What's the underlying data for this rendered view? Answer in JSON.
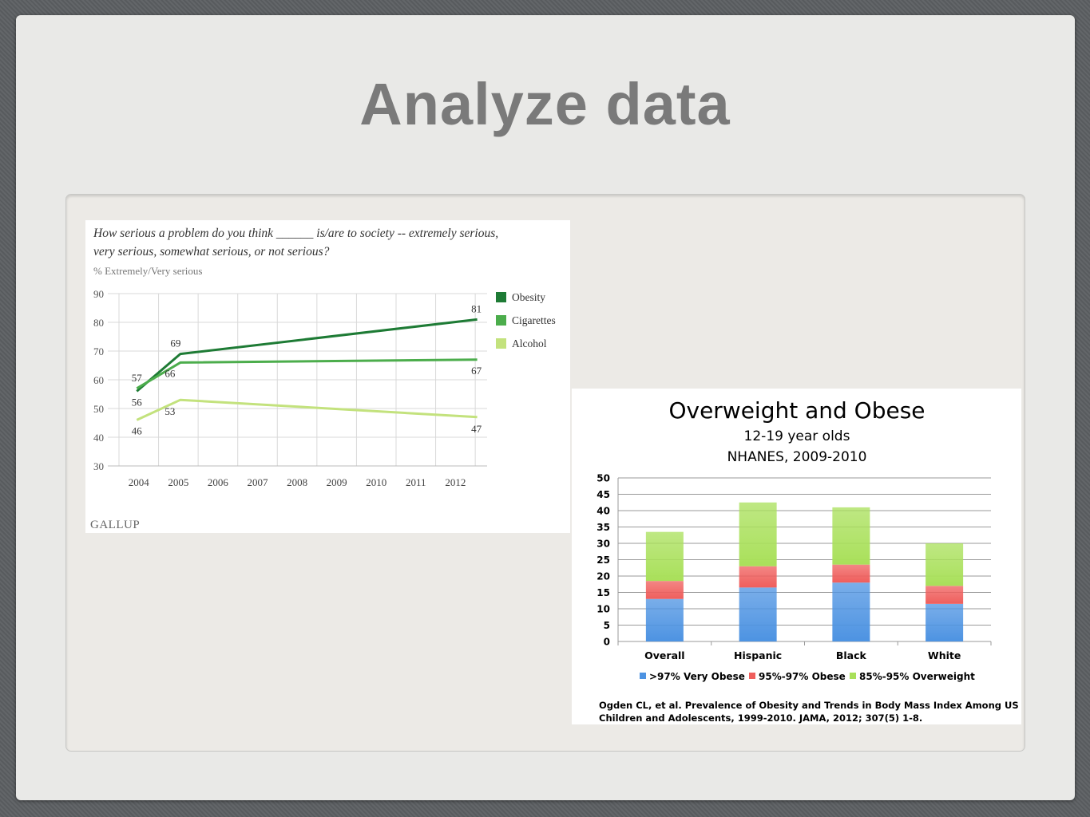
{
  "slide": {
    "title": "Analyze data"
  },
  "chart_data": [
    {
      "type": "line",
      "title": "How serious a problem do you think ______ is/are to society -- extremely serious,",
      "title_line2": "very serious, somewhat serious, or not serious?",
      "subtitle": "% Extremely/Very serious",
      "x_ticks": [
        "2004",
        "2005",
        "2006",
        "2007",
        "2008",
        "2009",
        "2010",
        "2011",
        "2012"
      ],
      "y_ticks": [
        "90",
        "80",
        "70",
        "60",
        "50",
        "40",
        "30"
      ],
      "ylim": [
        30,
        90
      ],
      "grid": true,
      "legend_position": "right",
      "series": [
        {
          "name": "Obesity",
          "color": "#1e7b35",
          "x": [
            2003.95,
            2005.05,
            2012.55
          ],
          "y": [
            56,
            69,
            81
          ],
          "labels": [
            "56",
            "69",
            "81"
          ]
        },
        {
          "name": "Cigarettes",
          "color": "#4cad4c",
          "x": [
            2003.95,
            2005.05,
            2012.55
          ],
          "y": [
            57,
            66,
            67
          ],
          "labels": [
            "57",
            "66",
            "67"
          ]
        },
        {
          "name": "Alcohol",
          "color": "#c3e27d",
          "x": [
            2003.95,
            2005.05,
            2012.55
          ],
          "y": [
            46,
            53,
            47
          ],
          "labels": [
            "46",
            "53",
            "47"
          ]
        }
      ],
      "source": "GALLUP"
    },
    {
      "type": "bar",
      "stacked": true,
      "title": "Overweight and Obese",
      "subtitle1": "12-19 year olds",
      "subtitle2": "NHANES, 2009-2010",
      "categories": [
        "Overall",
        "Hispanic",
        "Black",
        "White"
      ],
      "y_ticks": [
        "50",
        "45",
        "40",
        "35",
        "30",
        "25",
        "20",
        "15",
        "10",
        "5",
        "0"
      ],
      "ylim": [
        0,
        50
      ],
      "grid": true,
      "legend_position": "bottom",
      "series": [
        {
          "name": ">97%  Very Obese",
          "color": "#4d93e2",
          "values": [
            13,
            16.5,
            18,
            11.5
          ]
        },
        {
          "name": "95%-97% Obese",
          "color": "#ef5e5c",
          "values": [
            5.5,
            6.5,
            5.5,
            5.5
          ]
        },
        {
          "name": "85%-95% Overweight",
          "color": "#a9e05a",
          "values": [
            15,
            19.5,
            17.5,
            13
          ]
        }
      ],
      "citation_line1": "Ogden CL, et al.  Prevalence of Obesity and Trends in Body Mass Index Among US",
      "citation_line2": "Children and Adolescents, 1999-2010.  JAMA, 2012; 307(5) 1-8."
    }
  ]
}
